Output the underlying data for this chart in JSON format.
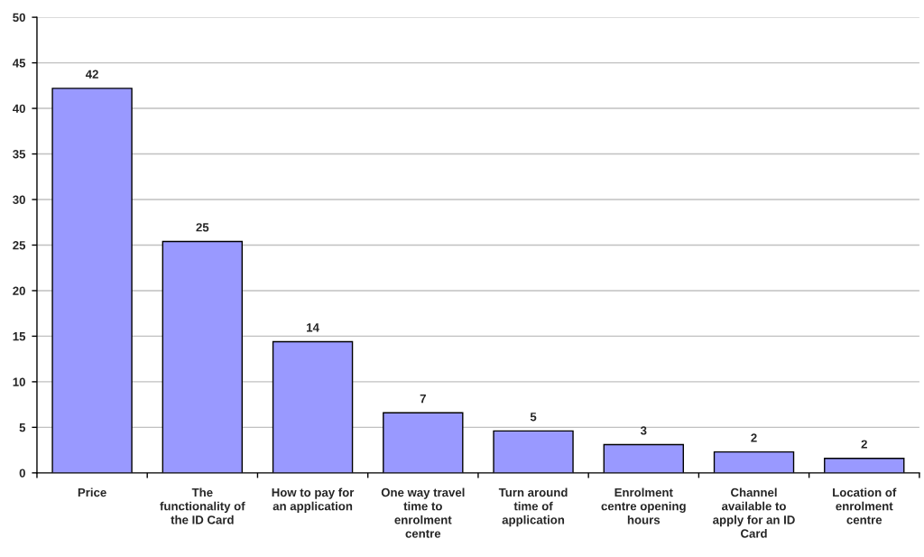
{
  "chart_data": {
    "type": "bar",
    "categories": [
      "Price",
      "The functionality of the ID Card",
      "How to pay for an application",
      "One way travel time to enrolment centre",
      "Turn around time of application",
      "Enrolment centre opening hours",
      "Channel available to apply for an ID Card",
      "Location of enrolment centre"
    ],
    "values": [
      42.2,
      25.4,
      14.4,
      6.6,
      4.6,
      3.1,
      2.3,
      1.6
    ],
    "value_labels": [
      "42",
      "25",
      "14",
      "7",
      "5",
      "3",
      "2",
      "2"
    ],
    "color": "#9999ff",
    "ylim": [
      0,
      50
    ],
    "yticks": [
      0,
      5,
      10,
      15,
      20,
      25,
      30,
      35,
      40,
      45,
      50
    ],
    "grid": "y"
  }
}
